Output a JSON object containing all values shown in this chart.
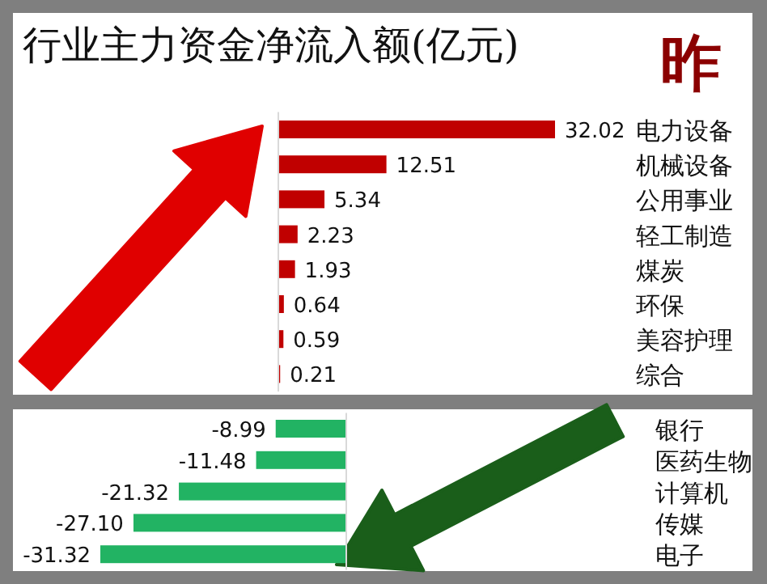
{
  "chart_data": [
    {
      "type": "bar",
      "orientation": "horizontal",
      "title": "行业主力资金净流入额(亿元)",
      "annotations": [
        "昨"
      ],
      "categories": [
        "电力设备",
        "机械设备",
        "公用事业",
        "轻工制造",
        "煤炭",
        "环保",
        "美容护理",
        "综合"
      ],
      "series": [
        {
          "color": "#c00000",
          "values": [
            32.02,
            12.51,
            5.34,
            2.23,
            1.93,
            0.64,
            0.59,
            0.21
          ]
        }
      ],
      "data_labels": true
    },
    {
      "type": "bar",
      "orientation": "horizontal",
      "categories": [
        "银行",
        "医药生物",
        "计算机",
        "传媒",
        "电子"
      ],
      "series": [
        {
          "color": "#22b363",
          "values": [
            -8.99,
            -11.48,
            -21.32,
            -27.1,
            -31.32
          ],
          "value_labels": [
            "-8.99",
            "-11.48",
            "-21.32",
            "-27.10",
            "-31.32"
          ]
        }
      ]
    }
  ]
}
